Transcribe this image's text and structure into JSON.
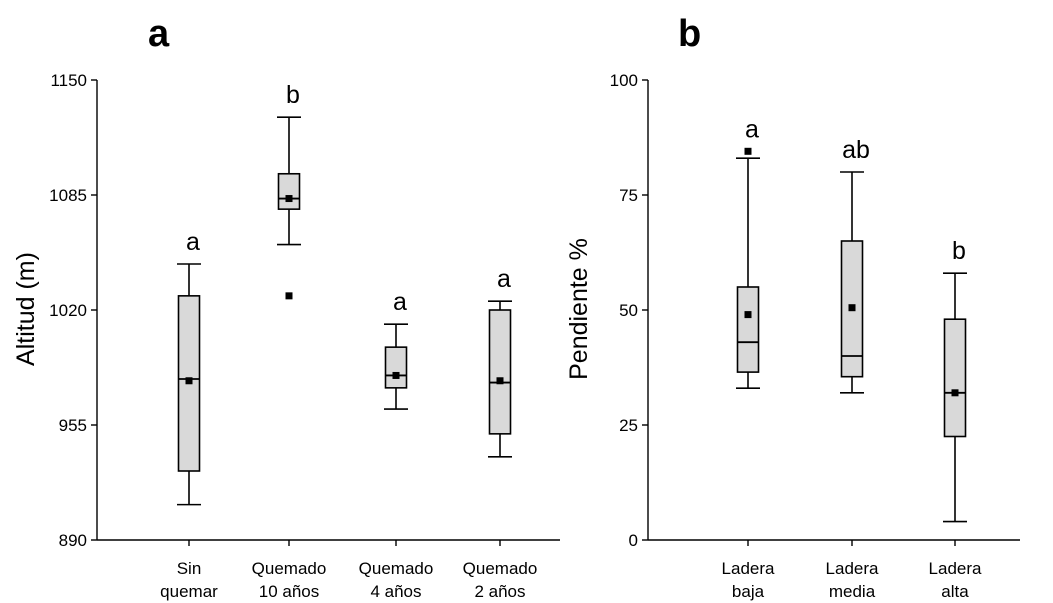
{
  "chart_data": [
    {
      "type": "box",
      "panel": "a",
      "ylabel": "Altitud (m)",
      "ylim": [
        890,
        1150
      ],
      "yticks": [
        890,
        955,
        1020,
        1085,
        1150
      ],
      "categories": [
        {
          "line1": "Sin",
          "line2": "quemar"
        },
        {
          "line1": "Quemado",
          "line2": "10 años"
        },
        {
          "line1": "Quemado",
          "line2": "4 años"
        },
        {
          "line1": "Quemado",
          "line2": "2 años"
        }
      ],
      "boxes": [
        {
          "whisker_low": 910,
          "q1": 929,
          "median": 981,
          "q3": 1028,
          "whisker_high": 1046,
          "mean": 980,
          "outliers": [],
          "letter": "a"
        },
        {
          "whisker_low": 1057,
          "q1": 1077,
          "median": 1083,
          "q3": 1097,
          "whisker_high": 1129,
          "mean": 1083,
          "outliers": [
            1028
          ],
          "letter": "b"
        },
        {
          "whisker_low": 964,
          "q1": 976,
          "median": 983,
          "q3": 999,
          "whisker_high": 1012,
          "mean": 983,
          "outliers": [],
          "letter": "a"
        },
        {
          "whisker_low": 937,
          "q1": 950,
          "median": 979,
          "q3": 1020,
          "whisker_high": 1025,
          "mean": 980,
          "outliers": [],
          "letter": "a"
        }
      ]
    },
    {
      "type": "box",
      "panel": "b",
      "ylabel": "Pendiente %",
      "ylim": [
        0,
        100
      ],
      "yticks": [
        0,
        25,
        50,
        75,
        100
      ],
      "categories": [
        {
          "line1": "Ladera",
          "line2": "baja"
        },
        {
          "line1": "Ladera",
          "line2": "media"
        },
        {
          "line1": "Ladera",
          "line2": "alta"
        }
      ],
      "boxes": [
        {
          "whisker_low": 33,
          "q1": 36.5,
          "median": 43,
          "q3": 55,
          "whisker_high": 83,
          "mean": 49,
          "outliers": [
            84.5
          ],
          "letter": "a"
        },
        {
          "whisker_low": 32,
          "q1": 35.5,
          "median": 40,
          "q3": 65,
          "whisker_high": 80,
          "mean": 50.5,
          "outliers": [],
          "letter": "ab"
        },
        {
          "whisker_low": 4,
          "q1": 22.5,
          "median": 32,
          "q3": 48,
          "whisker_high": 58,
          "mean": 32,
          "outliers": [],
          "letter": "b"
        }
      ]
    }
  ],
  "colors": {
    "box_fill": "#d9d9d9",
    "stroke": "#000000"
  }
}
